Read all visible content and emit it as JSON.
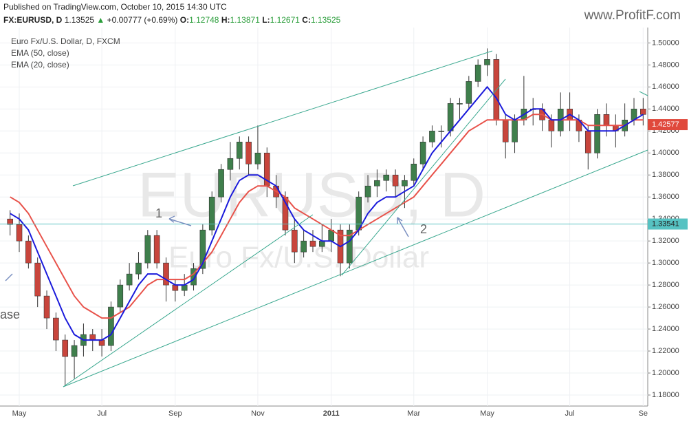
{
  "header": {
    "published": "Published on TradingView.com, October 10, 2015 14:30 UTC",
    "symbol": "FX:EURUSD, D",
    "price": "1.13525",
    "change": "+0.00777 (+0.69%)",
    "o_label": "O:",
    "o": "1.12748",
    "h_label": "H:",
    "h": "1.13871",
    "l_label": "L:",
    "l": "1.12671",
    "c_label": "C:",
    "c": "1.13525",
    "logo": "www.ProfitF.com"
  },
  "chart_data": {
    "type": "candlestick",
    "title": "Euro Fx/U.S. Dollar, D, FXCM",
    "watermark": "EURUSD, D",
    "watermark_subtitle": "Euro Fx/U.S. Dollar",
    "annotations": [
      "1",
      "2",
      "ase"
    ],
    "up_color": "#3f7f4c",
    "down_color": "#c8453c",
    "grid": true,
    "ylim": [
      1.17,
      1.514
    ],
    "yticks": [
      {
        "value": 1.18,
        "label": "1.18000"
      },
      {
        "value": 1.2,
        "label": "1.20000"
      },
      {
        "value": 1.22,
        "label": "1.22000"
      },
      {
        "value": 1.24,
        "label": "1.24000"
      },
      {
        "value": 1.26,
        "label": "1.26000"
      },
      {
        "value": 1.28,
        "label": "1.28000"
      },
      {
        "value": 1.3,
        "label": "1.30000"
      },
      {
        "value": 1.32,
        "label": "1.32000"
      },
      {
        "value": 1.34,
        "label": "1.34000"
      },
      {
        "value": 1.36,
        "label": "1.36000"
      },
      {
        "value": 1.38,
        "label": "1.38000"
      },
      {
        "value": 1.4,
        "label": "1.40000"
      },
      {
        "value": 1.42,
        "label": "1.42000"
      },
      {
        "value": 1.44,
        "label": "1.44000"
      },
      {
        "value": 1.46,
        "label": "1.46000"
      },
      {
        "value": 1.48,
        "label": "1.48000"
      },
      {
        "value": 1.5,
        "label": "1.50000"
      }
    ],
    "price_lines": [
      {
        "value": 1.33541,
        "color": "#56c2c2"
      },
      {
        "value": 1.42577,
        "color": "#e0493c"
      }
    ],
    "categories": [
      null,
      "May",
      null,
      null,
      null,
      null,
      null,
      null,
      null,
      null,
      "Jul",
      null,
      null,
      null,
      null,
      null,
      null,
      null,
      "Sep",
      null,
      null,
      null,
      null,
      null,
      null,
      null,
      null,
      "Nov",
      null,
      null,
      null,
      null,
      null,
      null,
      null,
      "2011",
      null,
      null,
      null,
      null,
      null,
      null,
      null,
      null,
      "Mar",
      null,
      null,
      null,
      null,
      null,
      null,
      null,
      "May",
      null,
      null,
      null,
      null,
      null,
      null,
      null,
      null,
      "Jul",
      null,
      null,
      null,
      null,
      null,
      null,
      null,
      "Se"
    ],
    "ohlc": [
      [
        1.34,
        1.348,
        1.325,
        1.335
      ],
      [
        1.335,
        1.345,
        1.31,
        1.32
      ],
      [
        1.32,
        1.325,
        1.295,
        1.3
      ],
      [
        1.3,
        1.305,
        1.26,
        1.27
      ],
      [
        1.27,
        1.275,
        1.24,
        1.25
      ],
      [
        1.25,
        1.255,
        1.22,
        1.23
      ],
      [
        1.23,
        1.235,
        1.188,
        1.215
      ],
      [
        1.215,
        1.23,
        1.195,
        1.225
      ],
      [
        1.225,
        1.245,
        1.215,
        1.235
      ],
      [
        1.235,
        1.24,
        1.22,
        1.23
      ],
      [
        1.23,
        1.24,
        1.215,
        1.225
      ],
      [
        1.225,
        1.265,
        1.22,
        1.26
      ],
      [
        1.26,
        1.285,
        1.255,
        1.28
      ],
      [
        1.28,
        1.3,
        1.275,
        1.29
      ],
      [
        1.29,
        1.31,
        1.285,
        1.3
      ],
      [
        1.3,
        1.33,
        1.295,
        1.325
      ],
      [
        1.325,
        1.33,
        1.295,
        1.3
      ],
      [
        1.3,
        1.305,
        1.265,
        1.28
      ],
      [
        1.28,
        1.285,
        1.265,
        1.275
      ],
      [
        1.275,
        1.29,
        1.27,
        1.28
      ],
      [
        1.28,
        1.3,
        1.275,
        1.295
      ],
      [
        1.295,
        1.335,
        1.29,
        1.33
      ],
      [
        1.33,
        1.365,
        1.325,
        1.36
      ],
      [
        1.36,
        1.39,
        1.355,
        1.385
      ],
      [
        1.385,
        1.41,
        1.375,
        1.395
      ],
      [
        1.395,
        1.415,
        1.385,
        1.41
      ],
      [
        1.41,
        1.415,
        1.38,
        1.39
      ],
      [
        1.39,
        1.425,
        1.385,
        1.4
      ],
      [
        1.4,
        1.405,
        1.36,
        1.37
      ],
      [
        1.37,
        1.38,
        1.35,
        1.36
      ],
      [
        1.36,
        1.365,
        1.325,
        1.33
      ],
      [
        1.33,
        1.34,
        1.3,
        1.31
      ],
      [
        1.31,
        1.33,
        1.305,
        1.32
      ],
      [
        1.32,
        1.33,
        1.31,
        1.315
      ],
      [
        1.315,
        1.335,
        1.31,
        1.32
      ],
      [
        1.32,
        1.34,
        1.31,
        1.33
      ],
      [
        1.33,
        1.335,
        1.288,
        1.3
      ],
      [
        1.3,
        1.335,
        1.295,
        1.33
      ],
      [
        1.33,
        1.365,
        1.325,
        1.36
      ],
      [
        1.36,
        1.38,
        1.355,
        1.37
      ],
      [
        1.37,
        1.385,
        1.36,
        1.375
      ],
      [
        1.375,
        1.385,
        1.365,
        1.38
      ],
      [
        1.38,
        1.385,
        1.36,
        1.37
      ],
      [
        1.37,
        1.38,
        1.35,
        1.375
      ],
      [
        1.375,
        1.395,
        1.37,
        1.39
      ],
      [
        1.39,
        1.415,
        1.385,
        1.41
      ],
      [
        1.41,
        1.425,
        1.405,
        1.42
      ],
      [
        1.42,
        1.425,
        1.405,
        1.42
      ],
      [
        1.42,
        1.45,
        1.415,
        1.445
      ],
      [
        1.445,
        1.45,
        1.43,
        1.445
      ],
      [
        1.445,
        1.47,
        1.44,
        1.465
      ],
      [
        1.465,
        1.485,
        1.46,
        1.48
      ],
      [
        1.48,
        1.495,
        1.47,
        1.485
      ],
      [
        1.485,
        1.49,
        1.425,
        1.43
      ],
      [
        1.43,
        1.435,
        1.395,
        1.41
      ],
      [
        1.41,
        1.435,
        1.4,
        1.43
      ],
      [
        1.43,
        1.47,
        1.425,
        1.44
      ],
      [
        1.44,
        1.45,
        1.425,
        1.44
      ],
      [
        1.44,
        1.445,
        1.42,
        1.43
      ],
      [
        1.43,
        1.435,
        1.405,
        1.42
      ],
      [
        1.42,
        1.455,
        1.415,
        1.44
      ],
      [
        1.44,
        1.455,
        1.42,
        1.43
      ],
      [
        1.43,
        1.435,
        1.41,
        1.42
      ],
      [
        1.42,
        1.425,
        1.385,
        1.4
      ],
      [
        1.4,
        1.44,
        1.395,
        1.435
      ],
      [
        1.435,
        1.445,
        1.415,
        1.425
      ],
      [
        1.425,
        1.435,
        1.405,
        1.42
      ],
      [
        1.42,
        1.445,
        1.415,
        1.43
      ],
      [
        1.43,
        1.45,
        1.425,
        1.44
      ],
      [
        1.44,
        1.45,
        1.425,
        1.435
      ]
    ],
    "series": [
      {
        "name": "EMA (50, close)",
        "color": "#e8524a",
        "values": [
          1.36,
          1.355,
          1.345,
          1.33,
          1.315,
          1.3,
          1.285,
          1.27,
          1.26,
          1.255,
          1.25,
          1.25,
          1.255,
          1.26,
          1.27,
          1.28,
          1.285,
          1.285,
          1.285,
          1.285,
          1.29,
          1.3,
          1.31,
          1.325,
          1.34,
          1.355,
          1.365,
          1.37,
          1.37,
          1.365,
          1.36,
          1.35,
          1.345,
          1.34,
          1.335,
          1.33,
          1.325,
          1.325,
          1.33,
          1.335,
          1.34,
          1.345,
          1.35,
          1.355,
          1.36,
          1.37,
          1.38,
          1.39,
          1.4,
          1.41,
          1.42,
          1.425,
          1.43,
          1.43,
          1.43,
          1.43,
          1.43,
          1.435,
          1.435,
          1.43,
          1.43,
          1.43,
          1.43,
          1.425,
          1.425,
          1.425,
          1.425,
          1.425,
          1.43,
          1.43
        ]
      },
      {
        "name": "EMA (20, close)",
        "color": "#1a1adb",
        "values": [
          1.345,
          1.34,
          1.33,
          1.31,
          1.29,
          1.27,
          1.25,
          1.235,
          1.23,
          1.23,
          1.23,
          1.235,
          1.25,
          1.265,
          1.28,
          1.29,
          1.29,
          1.285,
          1.28,
          1.28,
          1.285,
          1.3,
          1.32,
          1.34,
          1.36,
          1.375,
          1.38,
          1.38,
          1.375,
          1.37,
          1.355,
          1.34,
          1.33,
          1.325,
          1.32,
          1.32,
          1.315,
          1.32,
          1.33,
          1.345,
          1.355,
          1.36,
          1.36,
          1.365,
          1.37,
          1.385,
          1.4,
          1.41,
          1.42,
          1.43,
          1.44,
          1.45,
          1.46,
          1.45,
          1.435,
          1.43,
          1.435,
          1.44,
          1.44,
          1.43,
          1.43,
          1.435,
          1.43,
          1.42,
          1.42,
          1.42,
          1.42,
          1.425,
          1.43,
          1.435
        ]
      }
    ]
  }
}
